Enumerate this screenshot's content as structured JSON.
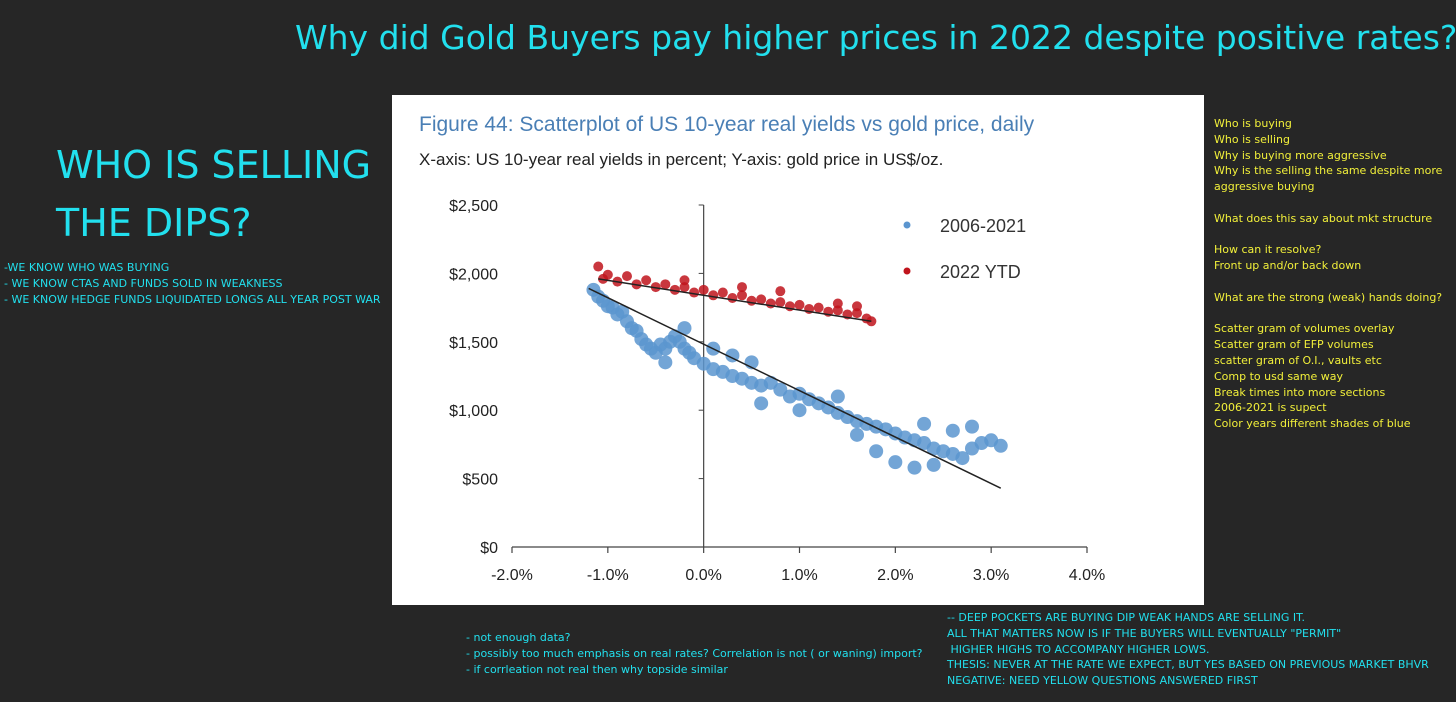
{
  "title": "Why did Gold Buyers pay higher prices in 2022 despite positive rates?",
  "heading": [
    "WHO IS SELLING",
    "THE DIPS?"
  ],
  "left_notes": [
    "-WE KNOW WHO WAS BUYING",
    "- WE KNOW CTAS AND FUNDS SOLD IN WEAKNESS",
    "- WE KNOW HEDGE FUNDS LIQUIDATED LONGS ALL YEAR POST WAR"
  ],
  "yellow_notes": [
    "Who is buying",
    "Who is selling",
    "Why is buying more aggressive",
    "Why is the selling the same despite more aggressive buying",
    "",
    "What does this say about mkt structure",
    "",
    "How can it resolve?",
    "Front up and/or back down",
    "",
    "What are the strong (weak) hands doing?",
    "",
    "Scatter gram of volumes overlay",
    "Scatter gram of EFP volumes",
    "scatter gram of O.I., vaults etc",
    "Comp to usd same way",
    "Break times into more sections",
    "2006-2021 is supect",
    "Color years different shades of blue"
  ],
  "bottom_notes": [
    "- not enough data?",
    "- possibly too much emphasis on real rates? Correlation is not ( or waning) import?",
    "- if corrleation not real then why topside similar"
  ],
  "right_bottom_notes": [
    "-- DEEP POCKETS ARE BUYING DIP WEAK HANDS ARE SELLING IT.",
    "ALL THAT MATTERS NOW IS IF THE BUYERS WILL EVENTUALLY \"PERMIT\"",
    " HIGHER HIGHS TO ACCOMPANY HIGHER LOWS.",
    "THESIS: NEVER AT THE RATE WE EXPECT, BUT YES BASED ON PREVIOUS MARKET BHVR",
    "NEGATIVE: NEED YELLOW QUESTIONS ANSWERED FIRST"
  ],
  "colors": {
    "background": "#262626",
    "cyan_text": "#22e0ee",
    "yellow_text": "#f2f03a",
    "series_2006_2021": "#5b95cf",
    "series_2022": "#c0141c",
    "figure_title": "#4a7fb5"
  },
  "chart_data": {
    "type": "scatter",
    "title": "Figure 44: Scatterplot of US 10-year real yields vs gold price, daily",
    "subtitle": "X-axis: US 10-year real yields in percent; Y-axis: gold price in US$/oz.",
    "xlabel": "",
    "ylabel": "",
    "xlim": [
      -2.0,
      4.0
    ],
    "ylim": [
      0,
      2500
    ],
    "x_ticks": [
      "-2.0%",
      "-1.0%",
      "0.0%",
      "1.0%",
      "2.0%",
      "3.0%",
      "4.0%"
    ],
    "y_ticks": [
      "$0",
      "$500",
      "$1,000",
      "$1,500",
      "$2,000",
      "$2,500"
    ],
    "grid": false,
    "legend_position": "top-right",
    "series": [
      {
        "name": "2006-2021",
        "points": [
          [
            -1.15,
            1880
          ],
          [
            -1.1,
            1830
          ],
          [
            -1.05,
            1800
          ],
          [
            -1.0,
            1760
          ],
          [
            -0.95,
            1750
          ],
          [
            -0.9,
            1700
          ],
          [
            -0.85,
            1720
          ],
          [
            -0.8,
            1650
          ],
          [
            -0.75,
            1600
          ],
          [
            -0.7,
            1580
          ],
          [
            -0.65,
            1520
          ],
          [
            -0.6,
            1480
          ],
          [
            -0.55,
            1450
          ],
          [
            -0.5,
            1420
          ],
          [
            -0.45,
            1480
          ],
          [
            -0.4,
            1450
          ],
          [
            -0.35,
            1500
          ],
          [
            -0.3,
            1540
          ],
          [
            -0.25,
            1500
          ],
          [
            -0.2,
            1450
          ],
          [
            -0.15,
            1420
          ],
          [
            -0.1,
            1380
          ],
          [
            0.0,
            1340
          ],
          [
            0.1,
            1300
          ],
          [
            0.2,
            1280
          ],
          [
            0.3,
            1250
          ],
          [
            0.4,
            1230
          ],
          [
            0.5,
            1200
          ],
          [
            0.6,
            1180
          ],
          [
            0.7,
            1200
          ],
          [
            0.8,
            1150
          ],
          [
            0.9,
            1100
          ],
          [
            1.0,
            1120
          ],
          [
            1.1,
            1080
          ],
          [
            1.2,
            1050
          ],
          [
            1.3,
            1020
          ],
          [
            1.4,
            980
          ],
          [
            1.5,
            950
          ],
          [
            1.6,
            920
          ],
          [
            1.7,
            900
          ],
          [
            1.8,
            880
          ],
          [
            1.9,
            860
          ],
          [
            2.0,
            830
          ],
          [
            2.1,
            800
          ],
          [
            2.2,
            780
          ],
          [
            2.3,
            760
          ],
          [
            2.4,
            720
          ],
          [
            2.5,
            700
          ],
          [
            2.6,
            680
          ],
          [
            2.7,
            650
          ],
          [
            2.8,
            720
          ],
          [
            2.9,
            760
          ],
          [
            3.0,
            780
          ],
          [
            3.1,
            740
          ],
          [
            2.0,
            620
          ],
          [
            2.2,
            580
          ],
          [
            2.4,
            600
          ],
          [
            1.8,
            700
          ],
          [
            1.6,
            820
          ],
          [
            0.5,
            1350
          ],
          [
            0.3,
            1400
          ],
          [
            0.1,
            1450
          ],
          [
            -0.2,
            1600
          ],
          [
            -0.4,
            1350
          ],
          [
            0.6,
            1050
          ],
          [
            1.0,
            1000
          ],
          [
            1.4,
            1100
          ],
          [
            2.6,
            850
          ],
          [
            2.8,
            880
          ],
          [
            2.3,
            900
          ]
        ]
      },
      {
        "name": "2022 YTD",
        "points": [
          [
            -1.1,
            2050
          ],
          [
            -1.05,
            1960
          ],
          [
            -1.0,
            1990
          ],
          [
            -0.9,
            1940
          ],
          [
            -0.8,
            1980
          ],
          [
            -0.7,
            1920
          ],
          [
            -0.6,
            1950
          ],
          [
            -0.5,
            1900
          ],
          [
            -0.4,
            1920
          ],
          [
            -0.3,
            1880
          ],
          [
            -0.2,
            1900
          ],
          [
            -0.1,
            1860
          ],
          [
            0.0,
            1880
          ],
          [
            0.1,
            1840
          ],
          [
            0.2,
            1860
          ],
          [
            0.3,
            1820
          ],
          [
            0.4,
            1840
          ],
          [
            0.5,
            1800
          ],
          [
            0.6,
            1810
          ],
          [
            0.7,
            1780
          ],
          [
            0.8,
            1790
          ],
          [
            0.9,
            1760
          ],
          [
            1.0,
            1770
          ],
          [
            1.1,
            1740
          ],
          [
            1.2,
            1750
          ],
          [
            1.3,
            1720
          ],
          [
            1.4,
            1730
          ],
          [
            1.5,
            1700
          ],
          [
            1.6,
            1710
          ],
          [
            1.7,
            1670
          ],
          [
            1.75,
            1650
          ],
          [
            0.8,
            1870
          ],
          [
            0.4,
            1900
          ],
          [
            -0.2,
            1950
          ],
          [
            1.4,
            1780
          ],
          [
            1.6,
            1760
          ]
        ]
      }
    ],
    "trendlines": [
      {
        "series": "2006-2021",
        "from": [
          -1.2,
          1890
        ],
        "to": [
          3.1,
          430
        ]
      },
      {
        "series": "2022 YTD",
        "from": [
          -1.1,
          1960
        ],
        "to": [
          1.75,
          1650
        ]
      }
    ]
  }
}
